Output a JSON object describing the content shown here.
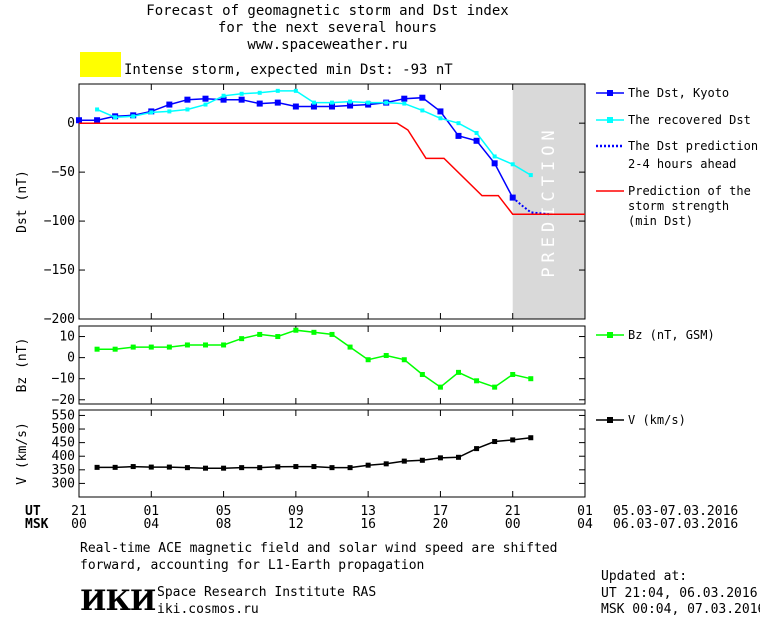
{
  "header": {
    "title_line1": "Forecast of geomagnetic storm and Dst index",
    "title_line2": "for the next several hours",
    "site": "www.spaceweather.ru"
  },
  "warning": {
    "color": "#ffff00",
    "text": "Intense storm, expected min Dst: -93 nT"
  },
  "colors": {
    "dst_kyoto": "#0000ff",
    "dst_recovered": "#00ffff",
    "prediction": "#ff0000",
    "bz": "#00ff00",
    "v": "#000000",
    "prediction_band": "#d9d9d9"
  },
  "legend": {
    "dst_kyoto": "The Dst, Kyoto",
    "dst_recovered": "The recovered Dst",
    "dst_pred_1": "The Dst prediction",
    "dst_pred_2": "2-4 hours ahead",
    "strength_1": "Prediction of the",
    "strength_2": "storm strength",
    "strength_3": "(min Dst)",
    "bz": "Bz (nT, GSM)",
    "v": "V (km/s)"
  },
  "band_label": "PREDICTION",
  "time_axis": {
    "ut_label": "UT",
    "msk_label": "MSK",
    "ut_ticks": [
      "21",
      "01",
      "05",
      "09",
      "13",
      "17",
      "21",
      "01"
    ],
    "msk_ticks": [
      "00",
      "04",
      "08",
      "12",
      "16",
      "20",
      "00",
      "04"
    ],
    "ut_range": "05.03-07.03.2016",
    "msk_range": "06.03-07.03.2016"
  },
  "notes": {
    "line1": "Real-time ACE magnetic field and solar wind speed are shifted",
    "line2": "forward, accounting for L1-Earth propagation"
  },
  "institute": {
    "logo": "ИКИ",
    "name": "Space Research Institute RAS",
    "site": "iki.cosmos.ru"
  },
  "updated": {
    "label": "Updated at:",
    "ut_line": "UT   21:04, 06.03.2016",
    "msk_line": "MSK 00:04, 07.03.2016"
  },
  "chart_data": [
    {
      "type": "line",
      "ylabel": "Dst (nT)",
      "ylim": [
        -200,
        40
      ],
      "yticks": [
        0,
        -50,
        -100,
        -150,
        -200
      ],
      "x_unit": "hours since 05.03 21:00 UT",
      "xlim": [
        0,
        28
      ],
      "prediction_start": 24,
      "series": [
        {
          "name": "The Dst, Kyoto",
          "x": [
            0,
            1,
            2,
            3,
            4,
            5,
            6,
            7,
            8,
            9,
            10,
            11,
            12,
            13,
            14,
            15,
            16,
            17,
            18,
            19,
            20,
            21,
            22,
            23,
            24
          ],
          "values": [
            3,
            3,
            7,
            8,
            12,
            19,
            24,
            25,
            24,
            24,
            20,
            21,
            17,
            17,
            17,
            18,
            19,
            21,
            25,
            26,
            12,
            -13,
            -18,
            -41,
            -76
          ]
        },
        {
          "name": "The recovered Dst",
          "x": [
            1,
            2,
            3,
            4,
            5,
            6,
            7,
            8,
            9,
            10,
            11,
            12,
            13,
            14,
            15,
            16,
            17,
            18,
            19,
            20,
            21,
            22,
            23,
            24,
            25
          ],
          "values": [
            14,
            6,
            7,
            11,
            12,
            14,
            19,
            28,
            30,
            31,
            33,
            33,
            21,
            21,
            22,
            21,
            21,
            20,
            13,
            5,
            0,
            -10,
            -34,
            -42,
            -53
          ]
        },
        {
          "name": "The Dst prediction 2-4 hours ahead",
          "x": [
            24,
            24.5,
            25,
            25.5,
            26
          ],
          "values": [
            -76,
            -84,
            -91,
            -92,
            -93
          ]
        },
        {
          "name": "Prediction of the storm strength (min Dst)",
          "x": [
            0,
            17.6,
            18.2,
            19.2,
            20.2,
            22.3,
            23.2,
            24,
            28
          ],
          "values": [
            0,
            0,
            -7,
            -36,
            -36,
            -74,
            -74,
            -93,
            -93
          ]
        }
      ]
    },
    {
      "type": "line",
      "ylabel": "Bz (nT)",
      "ylim": [
        -22,
        15
      ],
      "yticks": [
        10,
        0,
        -10,
        -20
      ],
      "xlim": [
        0,
        28
      ],
      "series": [
        {
          "name": "Bz (nT, GSM)",
          "x": [
            1,
            2,
            3,
            4,
            5,
            6,
            7,
            8,
            9,
            10,
            11,
            12,
            13,
            14,
            15,
            16,
            17,
            18,
            19,
            20,
            21,
            22,
            23,
            24,
            25
          ],
          "values": [
            4,
            4,
            5,
            5,
            5,
            6,
            6,
            6,
            9,
            11,
            10,
            13,
            12,
            11,
            5,
            -1,
            1,
            -1,
            -8,
            -14,
            -7,
            -11,
            -14,
            -8,
            -10
          ]
        }
      ]
    },
    {
      "type": "line",
      "ylabel": "V (km/s)",
      "ylim": [
        250,
        570
      ],
      "yticks": [
        550,
        500,
        450,
        400,
        350,
        300
      ],
      "xlim": [
        0,
        28
      ],
      "series": [
        {
          "name": "V (km/s)",
          "x": [
            1,
            2,
            3,
            4,
            5,
            6,
            7,
            8,
            9,
            10,
            11,
            12,
            13,
            14,
            15,
            16,
            17,
            18,
            19,
            20,
            21,
            22,
            23,
            24,
            25
          ],
          "values": [
            359,
            359,
            362,
            360,
            360,
            358,
            356,
            356,
            358,
            358,
            361,
            362,
            362,
            358,
            358,
            367,
            372,
            382,
            385,
            394,
            396,
            428,
            454,
            460,
            468
          ]
        }
      ]
    }
  ]
}
